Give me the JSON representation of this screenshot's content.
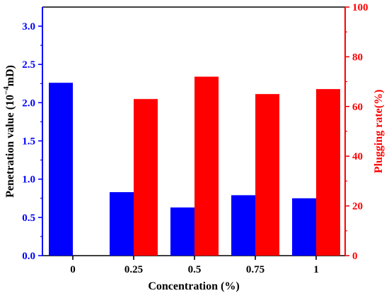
{
  "chart_data": {
    "type": "bar",
    "categories": [
      "0",
      "0.25",
      "0.5",
      "0.75",
      "1"
    ],
    "xlabel": "Concentration (%)",
    "series": [
      {
        "axis": "left",
        "color": "#0000ff",
        "values": [
          2.26,
          0.83,
          0.63,
          0.79,
          0.75
        ]
      },
      {
        "axis": "right",
        "color": "#ff0000",
        "values": [
          null,
          63,
          72,
          65,
          67
        ]
      }
    ],
    "left_axis": {
      "label_prefix": "Penetration value (10",
      "label_sup": "−4",
      "label_suffix": "mD)",
      "ylim": [
        0.0,
        3.25
      ],
      "ticks": [
        "0.0",
        "0.5",
        "1.0",
        "1.5",
        "2.0",
        "2.5",
        "3.0"
      ],
      "color": "#0000ff"
    },
    "right_axis": {
      "label": "Plugging rate(%)",
      "ylim": [
        0,
        100
      ],
      "ticks": [
        "0",
        "20",
        "40",
        "60",
        "80",
        "100"
      ],
      "color": "#ff0000"
    },
    "grid": false,
    "legend": "none"
  }
}
